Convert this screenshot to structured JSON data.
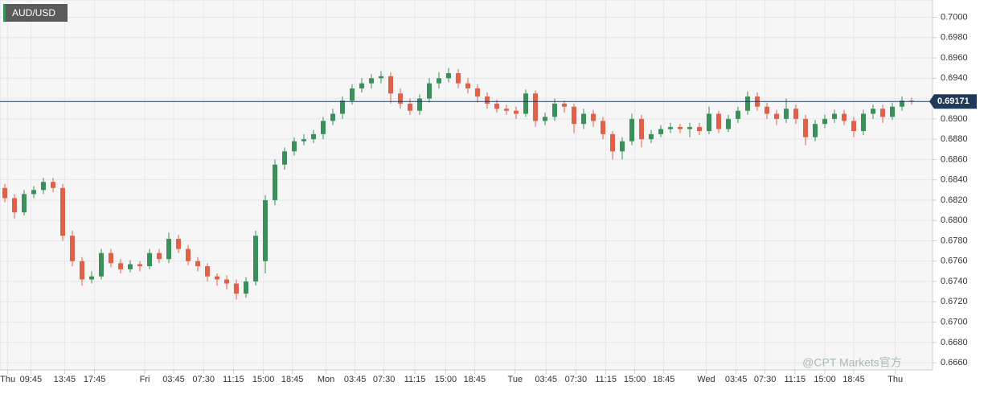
{
  "chart_data": {
    "type": "candlestick",
    "title": "AUD/USD",
    "up_color": "#3a8f5a",
    "down_color": "#e0604a",
    "grid": true,
    "ylim": [
      0.6653,
      0.7017
    ],
    "xlim": [
      -0.5,
      95.5
    ],
    "yticks": [
      {
        "value": 0.666,
        "label": "0.6660"
      },
      {
        "value": 0.668,
        "label": "0.6680"
      },
      {
        "value": 0.67,
        "label": "0.6700"
      },
      {
        "value": 0.672,
        "label": "0.6720"
      },
      {
        "value": 0.674,
        "label": "0.6740"
      },
      {
        "value": 0.676,
        "label": "0.6760"
      },
      {
        "value": 0.678,
        "label": "0.6780"
      },
      {
        "value": 0.68,
        "label": "0.6800"
      },
      {
        "value": 0.682,
        "label": "0.6820"
      },
      {
        "value": 0.684,
        "label": "0.6840"
      },
      {
        "value": 0.686,
        "label": "0.6860"
      },
      {
        "value": 0.688,
        "label": "0.6880"
      },
      {
        "value": 0.69,
        "label": "0.6900"
      },
      {
        "value": 0.692,
        "label": "0.6920"
      },
      {
        "value": 0.694,
        "label": "0.6940"
      },
      {
        "value": 0.696,
        "label": "0.6960"
      },
      {
        "value": 0.698,
        "label": "0.6980"
      },
      {
        "value": 0.7,
        "label": "0.7000"
      }
    ],
    "xticks": [
      {
        "value": 0.3,
        "label": "Thu"
      },
      {
        "value": 2.7,
        "label": "09:45"
      },
      {
        "value": 6.2,
        "label": "13:45"
      },
      {
        "value": 9.3,
        "label": "17:45"
      },
      {
        "value": 14.5,
        "label": "Fri"
      },
      {
        "value": 17.5,
        "label": "03:45"
      },
      {
        "value": 20.6,
        "label": "07:30"
      },
      {
        "value": 23.7,
        "label": "11:15"
      },
      {
        "value": 26.8,
        "label": "15:00"
      },
      {
        "value": 29.8,
        "label": "18:45"
      },
      {
        "value": 33.3,
        "label": "Mon"
      },
      {
        "value": 36.3,
        "label": "03:45"
      },
      {
        "value": 39.3,
        "label": "07:30"
      },
      {
        "value": 42.5,
        "label": "11:15"
      },
      {
        "value": 45.7,
        "label": "15:00"
      },
      {
        "value": 48.7,
        "label": "18:45"
      },
      {
        "value": 52.9,
        "label": "Tue"
      },
      {
        "value": 56.1,
        "label": "03:45"
      },
      {
        "value": 59.2,
        "label": "07:30"
      },
      {
        "value": 62.3,
        "label": "11:15"
      },
      {
        "value": 65.3,
        "label": "15:00"
      },
      {
        "value": 68.3,
        "label": "18:45"
      },
      {
        "value": 72.7,
        "label": "Wed"
      },
      {
        "value": 75.8,
        "label": "03:45"
      },
      {
        "value": 78.8,
        "label": "07:30"
      },
      {
        "value": 81.9,
        "label": "11:15"
      },
      {
        "value": 85.0,
        "label": "15:00"
      },
      {
        "value": 88.0,
        "label": "18:45"
      },
      {
        "value": 92.3,
        "label": "Thu"
      }
    ],
    "current_price": 0.69171,
    "current_price_color": "#1f3a5a",
    "watermark": "@CPT Markets官方",
    "open": [
      0.6832,
      0.6822,
      0.6808,
      0.6826,
      0.683,
      0.6838,
      0.6832,
      0.6785,
      0.676,
      0.6742,
      0.6745,
      0.6768,
      0.6758,
      0.6752,
      0.6757,
      0.6755,
      0.6768,
      0.6762,
      0.6782,
      0.6772,
      0.676,
      0.6755,
      0.6745,
      0.6742,
      0.6738,
      0.6728,
      0.674,
      0.676,
      0.682,
      0.6855,
      0.6868,
      0.6878,
      0.688,
      0.6885,
      0.6898,
      0.6905,
      0.6918,
      0.693,
      0.6935,
      0.694,
      0.6942,
      0.6925,
      0.6915,
      0.6908,
      0.692,
      0.6935,
      0.694,
      0.6945,
      0.6935,
      0.693,
      0.6922,
      0.6915,
      0.691,
      0.6908,
      0.6905,
      0.6925,
      0.6898,
      0.6902,
      0.6915,
      0.6912,
      0.6895,
      0.6905,
      0.6898,
      0.6885,
      0.6868,
      0.6878,
      0.69,
      0.688,
      0.6885,
      0.689,
      0.6892,
      0.689,
      0.6892,
      0.6888,
      0.6905,
      0.689,
      0.69,
      0.6908,
      0.6922,
      0.6912,
      0.6905,
      0.69,
      0.691,
      0.69,
      0.6882,
      0.6895,
      0.69,
      0.6905,
      0.6898,
      0.6888,
      0.6905,
      0.691,
      0.6902,
      0.6912,
      0.6918
    ],
    "high": [
      0.6836,
      0.6826,
      0.683,
      0.6834,
      0.6842,
      0.6842,
      0.6836,
      0.679,
      0.6764,
      0.675,
      0.6772,
      0.6772,
      0.6762,
      0.6761,
      0.676,
      0.6772,
      0.6772,
      0.6788,
      0.6786,
      0.6776,
      0.6764,
      0.6758,
      0.6748,
      0.6746,
      0.6742,
      0.6744,
      0.679,
      0.6825,
      0.686,
      0.6872,
      0.6882,
      0.6885,
      0.6889,
      0.6902,
      0.691,
      0.6922,
      0.6934,
      0.694,
      0.6944,
      0.6947,
      0.6946,
      0.693,
      0.692,
      0.6924,
      0.694,
      0.6946,
      0.695,
      0.6949,
      0.694,
      0.6934,
      0.6926,
      0.6919,
      0.6914,
      0.6912,
      0.6929,
      0.6928,
      0.6906,
      0.692,
      0.6918,
      0.6915,
      0.691,
      0.6909,
      0.6902,
      0.6888,
      0.6882,
      0.6905,
      0.6904,
      0.6889,
      0.6894,
      0.6896,
      0.6895,
      0.6896,
      0.6896,
      0.6912,
      0.6908,
      0.6904,
      0.6912,
      0.6927,
      0.6926,
      0.6916,
      0.6909,
      0.692,
      0.6914,
      0.6904,
      0.6899,
      0.6904,
      0.6909,
      0.6909,
      0.6902,
      0.6909,
      0.6914,
      0.6914,
      0.6916,
      0.6922,
      0.6921
    ],
    "low": [
      0.6818,
      0.6802,
      0.6805,
      0.6822,
      0.6826,
      0.6828,
      0.678,
      0.6755,
      0.6736,
      0.6738,
      0.6742,
      0.6754,
      0.6748,
      0.6749,
      0.675,
      0.6752,
      0.6758,
      0.6758,
      0.6768,
      0.6756,
      0.675,
      0.674,
      0.6736,
      0.6732,
      0.6722,
      0.6724,
      0.6736,
      0.6748,
      0.6815,
      0.685,
      0.6864,
      0.6874,
      0.6876,
      0.688,
      0.6894,
      0.69,
      0.6914,
      0.6926,
      0.693,
      0.6935,
      0.6915,
      0.691,
      0.6904,
      0.6904,
      0.6916,
      0.693,
      0.6936,
      0.693,
      0.6925,
      0.6916,
      0.691,
      0.6906,
      0.6904,
      0.69,
      0.6902,
      0.6892,
      0.6894,
      0.6898,
      0.6906,
      0.6886,
      0.689,
      0.6892,
      0.688,
      0.686,
      0.686,
      0.6874,
      0.6872,
      0.6876,
      0.6882,
      0.6886,
      0.6886,
      0.6882,
      0.6884,
      0.6885,
      0.6886,
      0.6887,
      0.6896,
      0.6904,
      0.6908,
      0.69,
      0.6894,
      0.6896,
      0.6895,
      0.6874,
      0.6878,
      0.6891,
      0.6896,
      0.6894,
      0.6882,
      0.6884,
      0.69,
      0.6896,
      0.6899,
      0.6908,
      0.6914
    ],
    "close": [
      0.6822,
      0.6808,
      0.6826,
      0.683,
      0.6838,
      0.6832,
      0.6785,
      0.676,
      0.6742,
      0.6745,
      0.6768,
      0.6758,
      0.6752,
      0.6757,
      0.6755,
      0.6768,
      0.6762,
      0.6782,
      0.6772,
      0.676,
      0.6755,
      0.6745,
      0.6742,
      0.6738,
      0.6728,
      0.674,
      0.6785,
      0.682,
      0.6855,
      0.6868,
      0.6878,
      0.688,
      0.6885,
      0.6898,
      0.6905,
      0.6918,
      0.693,
      0.6935,
      0.694,
      0.6942,
      0.6925,
      0.6915,
      0.6908,
      0.692,
      0.6935,
      0.694,
      0.6945,
      0.6935,
      0.693,
      0.6922,
      0.6915,
      0.691,
      0.6908,
      0.6905,
      0.6925,
      0.6898,
      0.6902,
      0.6915,
      0.6912,
      0.6895,
      0.6905,
      0.6898,
      0.6885,
      0.6868,
      0.6878,
      0.69,
      0.688,
      0.6885,
      0.689,
      0.6892,
      0.689,
      0.6892,
      0.6888,
      0.6905,
      0.689,
      0.69,
      0.6908,
      0.6922,
      0.6912,
      0.6905,
      0.69,
      0.691,
      0.69,
      0.6882,
      0.6895,
      0.69,
      0.6905,
      0.6898,
      0.6888,
      0.6905,
      0.691,
      0.6902,
      0.6912,
      0.6918,
      0.6917
    ]
  }
}
